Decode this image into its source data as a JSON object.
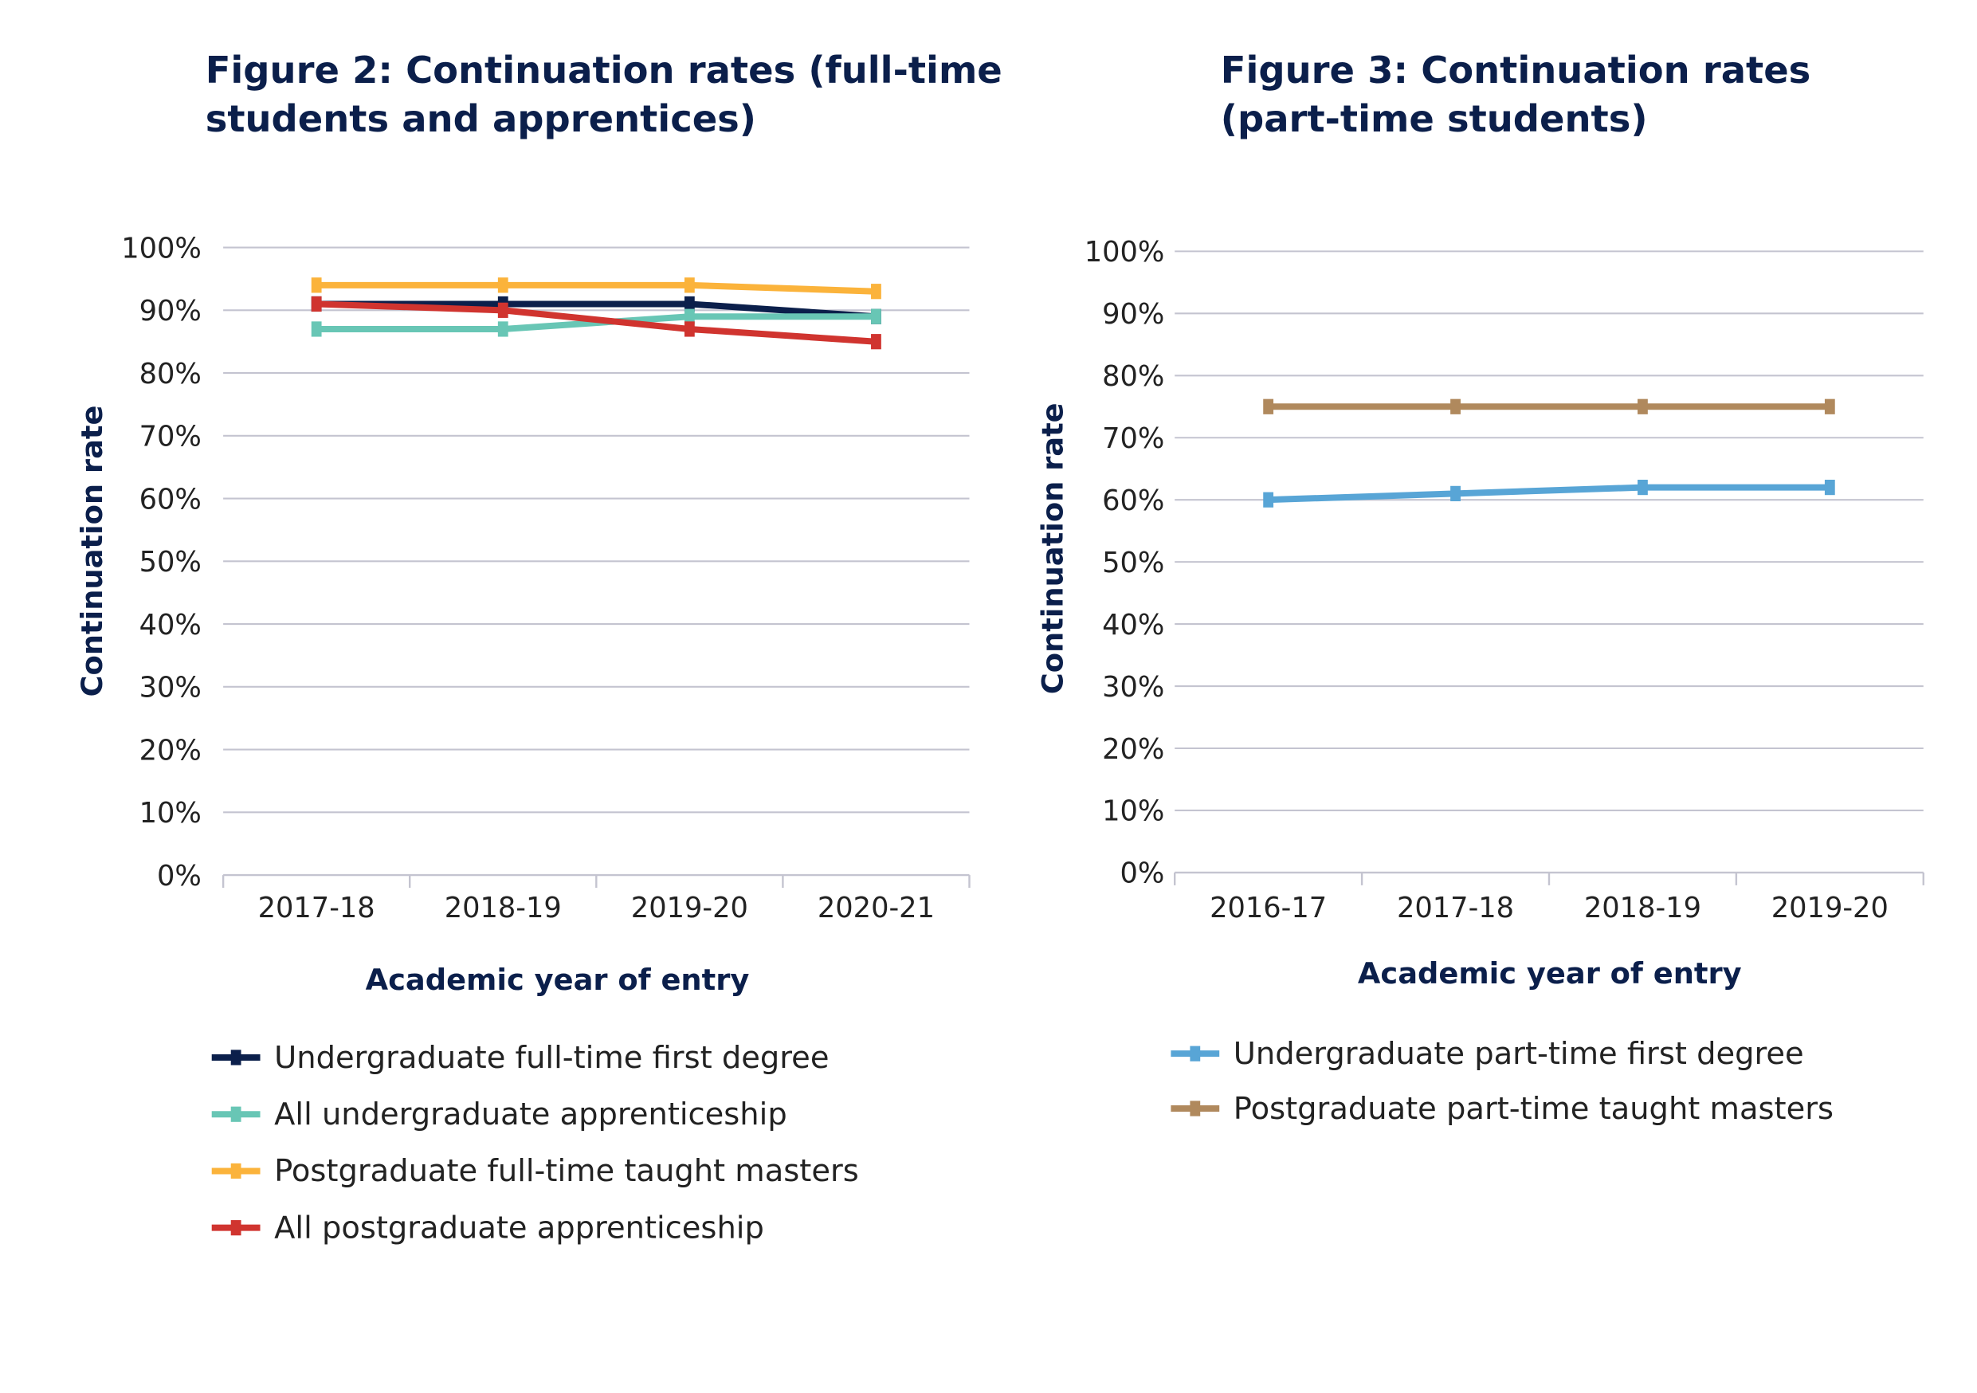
{
  "chart_data": [
    {
      "type": "line",
      "title": "Figure 2: Continuation rates (full-time students and apprentices)",
      "title_lines": [
        "Figure 2: Continuation rates (full-time",
        "students and apprentices)"
      ],
      "xlabel": "Academic year of entry",
      "ylabel": "Continuation rate",
      "categories": [
        "2017-18",
        "2018-19",
        "2019-20",
        "2020-21"
      ],
      "ylim": [
        0,
        100
      ],
      "yticks": [
        "0%",
        "10%",
        "20%",
        "30%",
        "40%",
        "50%",
        "60%",
        "70%",
        "80%",
        "90%",
        "100%"
      ],
      "grid": true,
      "legend_position": "bottom",
      "series": [
        {
          "name": "Undergraduate full-time first degree",
          "values": [
            91,
            91,
            91,
            89
          ],
          "color": "#0b1f4b"
        },
        {
          "name": "All undergraduate apprenticeship",
          "values": [
            87,
            87,
            89,
            89
          ],
          "color": "#68c6b5"
        },
        {
          "name": "Postgraduate full-time taught masters",
          "values": [
            94,
            94,
            94,
            93
          ],
          "color": "#fbb33b"
        },
        {
          "name": "All postgraduate apprenticeship",
          "values": [
            91,
            90,
            87,
            85
          ],
          "color": "#d0342f"
        }
      ]
    },
    {
      "type": "line",
      "title": "Figure 3: Continuation rates (part-time students)",
      "title_lines": [
        "Figure 3: Continuation rates",
        "(part-time students)"
      ],
      "xlabel": "Academic year of entry",
      "ylabel": "Continuation rate",
      "categories": [
        "2016-17",
        "2017-18",
        "2018-19",
        "2019-20"
      ],
      "ylim": [
        0,
        100
      ],
      "yticks": [
        "0%",
        "10%",
        "20%",
        "30%",
        "40%",
        "50%",
        "60%",
        "70%",
        "80%",
        "90%",
        "100%"
      ],
      "grid": true,
      "legend_position": "bottom",
      "series": [
        {
          "name": "Undergraduate part-time first degree",
          "values": [
            60,
            61,
            62,
            62
          ],
          "color": "#58a5d6"
        },
        {
          "name": "Postgraduate part-time taught masters",
          "values": [
            75,
            75,
            75,
            75
          ],
          "color": "#b0895d"
        }
      ]
    }
  ]
}
